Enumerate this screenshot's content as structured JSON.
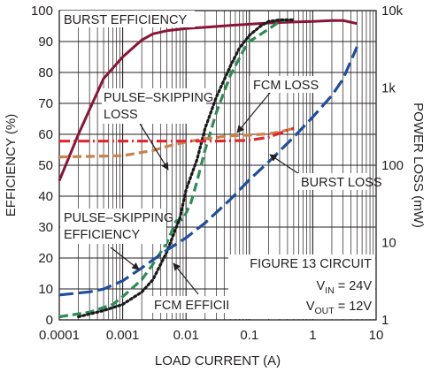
{
  "chart_data": {
    "type": "line",
    "title": "",
    "xlabel": "LOAD CURRENT (A)",
    "ylabel": "EFFICIENCY (%)",
    "y2label": "POWER LOSS (mW)",
    "xscale": "log",
    "xlim": [
      0.0001,
      10
    ],
    "ylim": [
      0,
      100
    ],
    "y2scale": "log",
    "y2lim": [
      1,
      10000
    ],
    "grid": true,
    "x_ticks": [
      "0.0001",
      "0.001",
      "0.01",
      "0.1",
      "1",
      "10"
    ],
    "y_ticks": [
      "0",
      "10",
      "20",
      "30",
      "40",
      "50",
      "60",
      "70",
      "80",
      "90",
      "100"
    ],
    "y2_ticks": [
      "1",
      "10",
      "100",
      "1k",
      "10k"
    ],
    "series": [
      {
        "name": "BURST EFFICIENCY",
        "axis": "left",
        "color": "#8a1538",
        "style": "solid",
        "x": [
          0.0001,
          0.0002,
          0.0003,
          0.0005,
          0.001,
          0.002,
          0.003,
          0.005,
          0.01,
          0.02,
          0.05,
          0.1,
          0.2,
          0.5,
          1,
          2,
          3,
          5
        ],
        "y": [
          45,
          60,
          68,
          78,
          85,
          90.5,
          92.5,
          93.5,
          94.2,
          94.6,
          95.2,
          95.6,
          96,
          96.3,
          96.5,
          96.8,
          96.8,
          95.8
        ]
      },
      {
        "name": "PULSE-SKIPPING EFFICIENCY",
        "axis": "left",
        "color": "#2e8b57",
        "style": "dashed",
        "x": [
          0.0001,
          0.0003,
          0.0007,
          0.001,
          0.002,
          0.003,
          0.005,
          0.007,
          0.009,
          0.012,
          0.015,
          0.02,
          0.03,
          0.05,
          0.08,
          0.1,
          0.2,
          0.3,
          0.4
        ],
        "y": [
          1,
          2.5,
          5,
          7.5,
          13,
          18,
          25,
          32,
          32.5,
          38,
          45,
          55,
          67,
          79,
          87,
          90,
          94,
          96.5,
          97
        ]
      },
      {
        "name": "FCM EFFICIENCY",
        "axis": "left",
        "color": "#1a1a1a",
        "style": "dotted",
        "x": [
          0.0002,
          0.0005,
          0.001,
          0.002,
          0.003,
          0.005,
          0.008,
          0.01,
          0.015,
          0.02,
          0.03,
          0.05,
          0.07,
          0.1,
          0.15,
          0.2,
          0.3,
          0.5
        ],
        "y": [
          1,
          3,
          5,
          9,
          13,
          22,
          33,
          42,
          52,
          62,
          72,
          82,
          88,
          92,
          95,
          96.5,
          97,
          97
        ]
      },
      {
        "name": "BURST LOSS",
        "axis": "right",
        "color": "#1f4e9c",
        "style": "longdash",
        "x": [
          0.0001,
          0.0003,
          0.0005,
          0.001,
          0.002,
          0.005,
          0.01,
          0.02,
          0.05,
          0.1,
          0.2,
          0.5,
          1,
          2,
          3,
          5
        ],
        "y": [
          2.1,
          2.3,
          2.5,
          3.2,
          4.7,
          8,
          11.5,
          18,
          36,
          65,
          110,
          230,
          420,
          800,
          1300,
          3400
        ]
      },
      {
        "name": "PULSE-SKIPPING LOSS",
        "axis": "right",
        "color": "#c9834a",
        "style": "dashed",
        "x": [
          0.0001,
          0.0003,
          0.001,
          0.003,
          0.005,
          0.01,
          0.02,
          0.05,
          0.1,
          0.2,
          0.3,
          0.5
        ],
        "y": [
          128,
          130,
          133,
          155,
          175,
          200,
          220,
          240,
          245,
          255,
          270,
          300
        ]
      },
      {
        "name": "FCM LOSS",
        "axis": "right",
        "color": "#e0262e",
        "style": "dashdot",
        "x": [
          0.0001,
          0.0003,
          0.001,
          0.003,
          0.01,
          0.03,
          0.1,
          0.2,
          0.3,
          0.5
        ],
        "y": [
          205,
          205,
          205,
          205,
          205,
          205,
          210,
          230,
          260,
          300
        ]
      }
    ],
    "annotations": [
      {
        "text": "BURST EFFICIENCY"
      },
      {
        "text": "PULSE–SKIPPING"
      },
      {
        "text": "LOSS"
      },
      {
        "text": "FCM LOSS"
      },
      {
        "text": "BURST LOSS"
      },
      {
        "text": "PULSE–SKIPPING"
      },
      {
        "text": "EFFICIENCY"
      },
      {
        "text": "FCM EFFICIENCY"
      },
      {
        "text": "FIGURE 13 CIRCUIT"
      },
      {
        "text": "V",
        "sub": "IN",
        "suffix": " = 24V"
      },
      {
        "text": "V",
        "sub": "OUT",
        "suffix": " = 12V"
      }
    ]
  }
}
